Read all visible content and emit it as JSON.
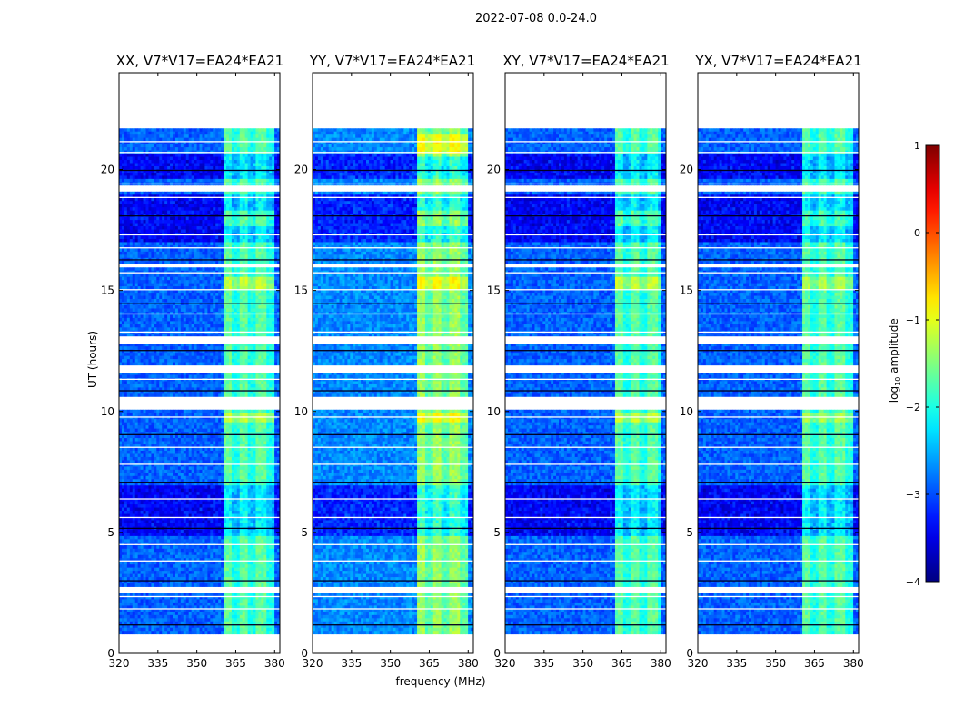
{
  "figure_title": "2022-07-08 0.0-24.0",
  "colorbar": {
    "label_prefix": "log",
    "label_sub": "10",
    "label_suffix": " amplitude",
    "ticks": [
      "1",
      "0",
      "−1",
      "−2",
      "−3",
      "−4"
    ],
    "range": [
      -4,
      1
    ],
    "colormap": "jet"
  },
  "chart_data": [
    {
      "type": "heatmap",
      "title": "XX, V7*V17=EA24*EA21",
      "xlabel": "",
      "ylabel": "UT (hours)",
      "xlim": [
        320,
        382
      ],
      "ylim": [
        0,
        24
      ],
      "xticks": [
        "320",
        "335",
        "350",
        "365",
        "380"
      ],
      "yticks": [
        "0",
        "5",
        "10",
        "15",
        "20"
      ],
      "z_units": "log10 amplitude",
      "base_level": -2.9,
      "rfi_band_mhz": [
        360,
        380
      ],
      "rfi_level": -1.9,
      "strong_rfi_ut_hours": [
        [
          15.0,
          15.5
        ],
        [
          17.7,
          18.3
        ],
        [
          9.6,
          10.0
        ]
      ],
      "strong_rfi_level": -1.4
    },
    {
      "type": "heatmap",
      "title": "YY, V7*V17=EA24*EA21",
      "xlabel": "",
      "ylabel": "",
      "xlim": [
        320,
        382
      ],
      "ylim": [
        0,
        24
      ],
      "xticks": [
        "320",
        "335",
        "350",
        "365",
        "380"
      ],
      "yticks": [
        "0",
        "5",
        "10",
        "15",
        "20"
      ],
      "z_units": "log10 amplitude",
      "base_level": -2.7,
      "rfi_band_mhz": [
        360,
        380
      ],
      "rfi_level": -1.6,
      "strong_rfi_ut_hours": [
        [
          15.0,
          15.5
        ],
        [
          17.7,
          18.3
        ],
        [
          9.6,
          10.0
        ],
        [
          20.5,
          21.5
        ]
      ],
      "strong_rfi_level": -1.1
    },
    {
      "type": "heatmap",
      "title": "XY, V7*V17=EA24*EA21",
      "xlabel": "",
      "ylabel": "",
      "xlim": [
        320,
        382
      ],
      "ylim": [
        0,
        24
      ],
      "xticks": [
        "320",
        "335",
        "350",
        "365",
        "380"
      ],
      "yticks": [
        "0",
        "5",
        "10",
        "15",
        "20"
      ],
      "z_units": "log10 amplitude",
      "base_level": -2.9,
      "rfi_band_mhz": [
        362,
        380
      ],
      "rfi_level": -1.9,
      "strong_rfi_ut_hours": [
        [
          15.0,
          15.5
        ],
        [
          17.7,
          18.3
        ],
        [
          9.6,
          10.0
        ]
      ],
      "strong_rfi_level": -1.4
    },
    {
      "type": "heatmap",
      "title": "YX, V7*V17=EA24*EA21",
      "xlabel": "",
      "ylabel": "",
      "xlim": [
        320,
        382
      ],
      "ylim": [
        0,
        24
      ],
      "xticks": [
        "320",
        "335",
        "350",
        "365",
        "380"
      ],
      "yticks": [
        "0",
        "5",
        "10",
        "15",
        "20"
      ],
      "z_units": "log10 amplitude",
      "base_level": -2.9,
      "rfi_band_mhz": [
        360,
        380
      ],
      "rfi_level": -1.9,
      "strong_rfi_ut_hours": [
        [
          15.0,
          15.5
        ],
        [
          17.7,
          18.3
        ],
        [
          9.6,
          10.0
        ]
      ],
      "strong_rfi_level": -1.5
    }
  ],
  "shared_xlabel": "frequency (MHz)",
  "data_coverage_ut_hours": [
    0.8,
    21.7
  ],
  "flagged_gaps_ut_hours": [
    [
      2.5,
      2.7
    ],
    [
      10.1,
      10.6
    ],
    [
      11.6,
      11.9
    ],
    [
      12.8,
      13.1
    ],
    [
      16.0,
      16.1
    ],
    [
      19.1,
      19.3
    ]
  ]
}
